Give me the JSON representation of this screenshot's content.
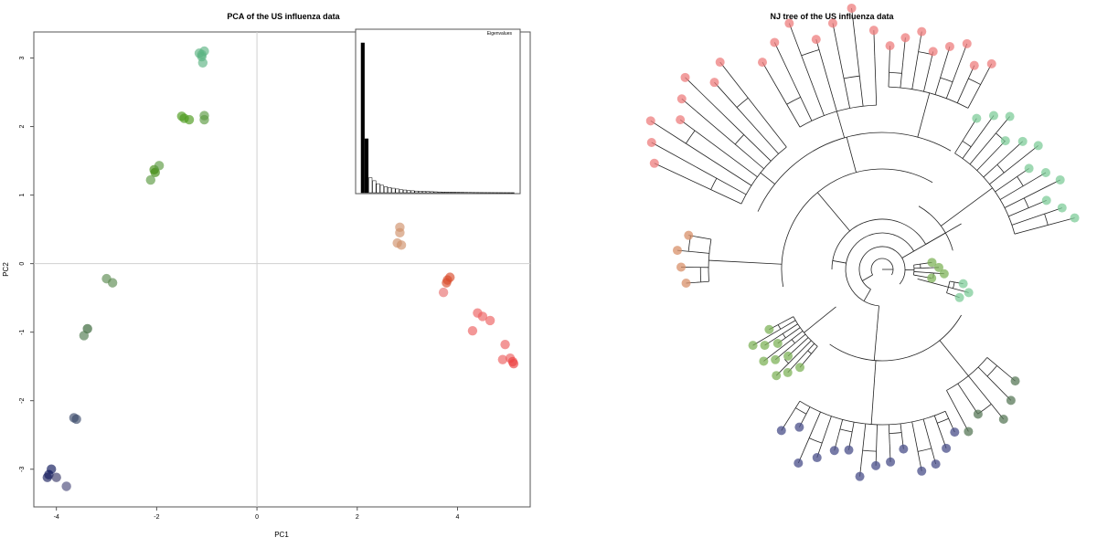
{
  "chart_data": [
    {
      "type": "scatter",
      "title": "PCA of the US influenza data",
      "xlabel": "PC1",
      "ylabel": "PC2",
      "xlim": [
        -4.45,
        5.45
      ],
      "ylim": [
        -3.55,
        3.38
      ],
      "xticks": [
        -4,
        -2,
        0,
        2,
        4
      ],
      "yticks": [
        -3,
        -2,
        -1,
        0,
        1,
        2,
        3
      ],
      "xtick_labels": [
        "-4",
        "-2",
        "0",
        "2",
        "4"
      ],
      "ytick_labels": [
        "-3",
        "-2",
        "-1",
        "0",
        "1",
        "2",
        "3"
      ],
      "grid": false,
      "reference_lines": {
        "x": 0,
        "y": 0
      },
      "points": [
        {
          "x": -1.1,
          "y": 3.05,
          "color": "#5cb482"
        },
        {
          "x": -1.05,
          "y": 3.1,
          "color": "#5cb482"
        },
        {
          "x": -1.1,
          "y": 3.02,
          "color": "#5cb482"
        },
        {
          "x": -1.08,
          "y": 2.93,
          "color": "#5cb482"
        },
        {
          "x": -1.15,
          "y": 3.07,
          "color": "#5cb482"
        },
        {
          "x": -1.5,
          "y": 2.15,
          "color": "#4a9a1a"
        },
        {
          "x": -1.45,
          "y": 2.12,
          "color": "#4a9a1a"
        },
        {
          "x": -1.35,
          "y": 2.1,
          "color": "#4a9a1a"
        },
        {
          "x": -1.05,
          "y": 2.16,
          "color": "#5a9a40"
        },
        {
          "x": -1.05,
          "y": 2.1,
          "color": "#5a9a40"
        },
        {
          "x": -2.05,
          "y": 1.37,
          "color": "#3f8a10"
        },
        {
          "x": -2.03,
          "y": 1.33,
          "color": "#3f8a10"
        },
        {
          "x": -1.95,
          "y": 1.43,
          "color": "#5a9a40"
        },
        {
          "x": -2.12,
          "y": 1.22,
          "color": "#5a9a40"
        },
        {
          "x": -3.0,
          "y": -0.22,
          "color": "#5a8a50"
        },
        {
          "x": -2.88,
          "y": -0.28,
          "color": "#5a8a50"
        },
        {
          "x": -3.38,
          "y": -0.95,
          "color": "#2e5e2e"
        },
        {
          "x": -3.45,
          "y": -1.05,
          "color": "#4f7a4f"
        },
        {
          "x": -3.65,
          "y": -2.25,
          "color": "#3a4a6a"
        },
        {
          "x": -3.6,
          "y": -2.27,
          "color": "#3a4a6a"
        },
        {
          "x": -4.1,
          "y": -3.0,
          "color": "#0a1458"
        },
        {
          "x": -4.15,
          "y": -3.08,
          "color": "#0a1458"
        },
        {
          "x": -4.18,
          "y": -3.12,
          "color": "#1a2060"
        },
        {
          "x": -4.0,
          "y": -3.12,
          "color": "#3a3a6a"
        },
        {
          "x": -3.8,
          "y": -3.25,
          "color": "#4a4a7a"
        },
        {
          "x": 2.85,
          "y": 0.53,
          "color": "#d0906a"
        },
        {
          "x": 2.85,
          "y": 0.45,
          "color": "#d0906a"
        },
        {
          "x": 2.8,
          "y": 0.3,
          "color": "#d0906a"
        },
        {
          "x": 2.88,
          "y": 0.27,
          "color": "#d0906a"
        },
        {
          "x": 3.85,
          "y": -0.2,
          "color": "#d84a2a"
        },
        {
          "x": 3.8,
          "y": -0.24,
          "color": "#d84a2a"
        },
        {
          "x": 3.78,
          "y": -0.28,
          "color": "#d84a2a"
        },
        {
          "x": 3.72,
          "y": -0.42,
          "color": "#e87070"
        },
        {
          "x": 4.4,
          "y": -0.72,
          "color": "#ec6060"
        },
        {
          "x": 4.5,
          "y": -0.77,
          "color": "#ec6060"
        },
        {
          "x": 4.65,
          "y": -0.83,
          "color": "#ec6060"
        },
        {
          "x": 4.3,
          "y": -0.98,
          "color": "#ec6060"
        },
        {
          "x": 4.95,
          "y": -1.18,
          "color": "#ec6060"
        },
        {
          "x": 4.9,
          "y": -1.4,
          "color": "#ec6060"
        },
        {
          "x": 5.05,
          "y": -1.38,
          "color": "#ec6060"
        },
        {
          "x": 5.1,
          "y": -1.43,
          "color": "#ec4040"
        },
        {
          "x": 5.12,
          "y": -1.46,
          "color": "#ec4040"
        }
      ]
    },
    {
      "type": "bar",
      "title": "Eigenvalues",
      "values": [
        100,
        36,
        10,
        8,
        6,
        5,
        4,
        3.5,
        3,
        2.5,
        2,
        1.8,
        1.5,
        1.3,
        1.1,
        1.0,
        0.9,
        0.8,
        0.7,
        0.6,
        0.5,
        0.45,
        0.4,
        0.35,
        0.3,
        0.27,
        0.24,
        0.2,
        0.18,
        0.15,
        0.13,
        0.11,
        0.1,
        0.09,
        0.08,
        0.07,
        0.06,
        0.05,
        0.04,
        0.03
      ],
      "highlighted": [
        0,
        1
      ],
      "ylim": [
        0,
        100
      ]
    },
    {
      "type": "tree",
      "title": "NJ tree of the US influenza data",
      "layout": "fan",
      "tip_color": {
        "red": "#ee7d7d",
        "light-green": "#7fcc9a",
        "orange": "#d8906a",
        "green": "#7fb35a",
        "dark-green": "#5a7a5a",
        "navy": "#4a4f8a"
      }
    }
  ]
}
